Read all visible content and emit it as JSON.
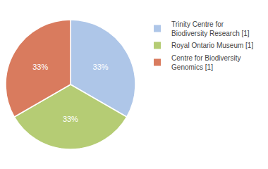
{
  "chart_data": {
    "type": "pie",
    "categories": [
      "Trinity Centre for\nBiodiversity Research [1]",
      "Royal Ontario Museum [1]",
      "Centre for Biodiversity\nGenomics [1]"
    ],
    "values": [
      33,
      33,
      33
    ],
    "value_labels": [
      "33%",
      "33%",
      "33%"
    ],
    "data_labels": true,
    "colors": [
      "#aec6e8",
      "#b5cc74",
      "#d97b5e"
    ],
    "legend": "right"
  }
}
